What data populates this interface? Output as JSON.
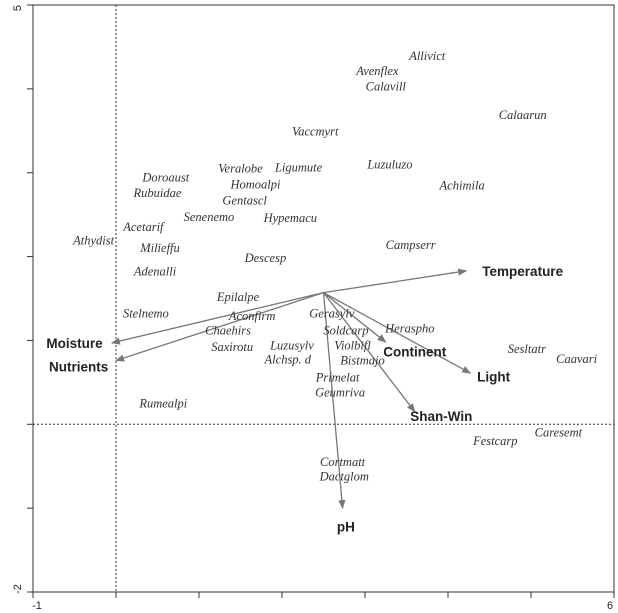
{
  "chart_data": {
    "type": "scatter",
    "subtype": "ordination-biplot",
    "title": "",
    "xlabel": "",
    "ylabel": "",
    "xlim": [
      -1,
      6
    ],
    "ylim": [
      -2,
      5
    ],
    "x_ticks": [
      "-1",
      "6"
    ],
    "y_ticks": [
      "-2",
      "5"
    ],
    "grid": false,
    "reference_lines": {
      "x": 0,
      "y": 0,
      "style": "dotted"
    },
    "origin": [
      2.5,
      1.57
    ],
    "species": [
      {
        "label": "Allivict",
        "x": 3.75,
        "y": 4.39
      },
      {
        "label": "Avenflex",
        "x": 3.15,
        "y": 4.21
      },
      {
        "label": "Calavill",
        "x": 3.25,
        "y": 4.03
      },
      {
        "label": "Calaarun",
        "x": 4.9,
        "y": 3.69
      },
      {
        "label": "Vaccmyrt",
        "x": 2.4,
        "y": 3.49
      },
      {
        "label": "Luzuluzo",
        "x": 3.3,
        "y": 3.1
      },
      {
        "label": "Ligumute",
        "x": 2.2,
        "y": 3.06
      },
      {
        "label": "Veralobe",
        "x": 1.5,
        "y": 3.05
      },
      {
        "label": "Doroaust",
        "x": 0.6,
        "y": 2.94
      },
      {
        "label": "Homoalpi",
        "x": 1.68,
        "y": 2.86
      },
      {
        "label": "Achimila",
        "x": 4.17,
        "y": 2.85
      },
      {
        "label": "Rubuidae",
        "x": 0.5,
        "y": 2.76
      },
      {
        "label": "Gentascl",
        "x": 1.55,
        "y": 2.67
      },
      {
        "label": "Senenemo",
        "x": 1.12,
        "y": 2.47
      },
      {
        "label": "Hypemacu",
        "x": 2.1,
        "y": 2.46
      },
      {
        "label": "Acetarif",
        "x": 0.33,
        "y": 2.35
      },
      {
        "label": "Athydist",
        "x": -0.27,
        "y": 2.19
      },
      {
        "label": "Campserr",
        "x": 3.55,
        "y": 2.14
      },
      {
        "label": "Milieffu",
        "x": 0.53,
        "y": 2.1
      },
      {
        "label": "Descesp",
        "x": 1.8,
        "y": 1.98
      },
      {
        "label": "Adenalli",
        "x": 0.47,
        "y": 1.82
      },
      {
        "label": "Epilalpe",
        "x": 1.47,
        "y": 1.52
      },
      {
        "label": "Stelnemo",
        "x": 0.36,
        "y": 1.32
      },
      {
        "label": "Gerasylv",
        "x": 2.6,
        "y": 1.32
      },
      {
        "label": "Aconfirm",
        "x": 1.64,
        "y": 1.29
      },
      {
        "label": "Chaehirs",
        "x": 1.35,
        "y": 1.12
      },
      {
        "label": "Soldcarp",
        "x": 2.77,
        "y": 1.12
      },
      {
        "label": "Heraspho",
        "x": 3.54,
        "y": 1.14
      },
      {
        "label": "Luzusylv",
        "x": 2.12,
        "y": 0.94
      },
      {
        "label": "Violbifl",
        "x": 2.85,
        "y": 0.94
      },
      {
        "label": "Saxirotu",
        "x": 1.4,
        "y": 0.92
      },
      {
        "label": "Sesltatr",
        "x": 4.95,
        "y": 0.9
      },
      {
        "label": "Caavari",
        "x": 5.55,
        "y": 0.78
      },
      {
        "label": "Alchsp. d",
        "x": 2.07,
        "y": 0.77
      },
      {
        "label": "Bistmajo",
        "x": 2.97,
        "y": 0.76
      },
      {
        "label": "Primelat",
        "x": 2.67,
        "y": 0.56
      },
      {
        "label": "Geumriva",
        "x": 2.7,
        "y": 0.38
      },
      {
        "label": "Rumealpi",
        "x": 0.57,
        "y": 0.25
      },
      {
        "label": "Caresemt",
        "x": 5.33,
        "y": -0.1
      },
      {
        "label": "Festcarp",
        "x": 4.57,
        "y": -0.2
      },
      {
        "label": "Cortmatt",
        "x": 2.73,
        "y": -0.45
      },
      {
        "label": "Dactglom",
        "x": 2.75,
        "y": -0.62
      }
    ],
    "variables": [
      {
        "label": "Temperature",
        "x": 4.22,
        "y": 1.83,
        "label_x": 4.9,
        "label_y": 1.83
      },
      {
        "label": "Moisture",
        "x": -0.05,
        "y": 0.97,
        "label_x": -0.5,
        "label_y": 0.97
      },
      {
        "label": "Nutrients",
        "x": 0.0,
        "y": 0.76,
        "label_x": -0.45,
        "label_y": 0.69
      },
      {
        "label": "Continent",
        "x": 3.25,
        "y": 0.98,
        "label_x": 3.6,
        "label_y": 0.87
      },
      {
        "label": "Light",
        "x": 4.27,
        "y": 0.61,
        "label_x": 4.55,
        "label_y": 0.57
      },
      {
        "label": "Shan-Win",
        "x": 3.6,
        "y": 0.15,
        "label_x": 3.92,
        "label_y": 0.1
      },
      {
        "label": "pH",
        "x": 2.73,
        "y": -1.0,
        "label_x": 2.77,
        "label_y": -1.22
      }
    ]
  }
}
